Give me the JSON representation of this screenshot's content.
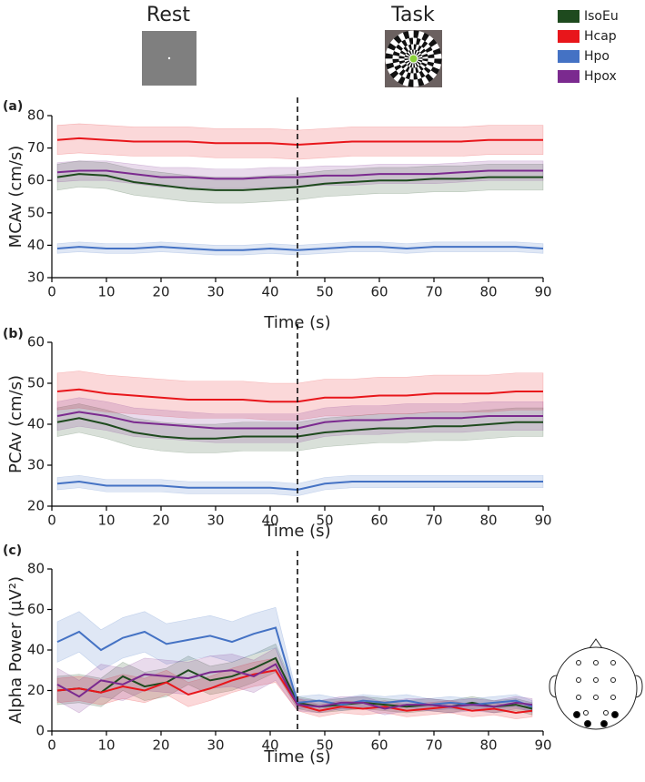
{
  "header": {
    "rest": "Rest",
    "task": "Task"
  },
  "chart_data": [
    {
      "type": "line",
      "panel_label": "(a)",
      "x_label": "Time (s)",
      "y_label": "MCAv (cm/s)",
      "vline": 45,
      "x": [
        1,
        5,
        10,
        15,
        20,
        25,
        30,
        35,
        40,
        45,
        50,
        55,
        60,
        65,
        70,
        75,
        80,
        85,
        90
      ],
      "xlim": [
        0,
        90
      ],
      "xticks": [
        0,
        10,
        20,
        30,
        40,
        50,
        60,
        70,
        80,
        90
      ],
      "ylim": [
        30,
        80
      ],
      "yticks": [
        30,
        40,
        50,
        60,
        70,
        80
      ],
      "series": [
        {
          "name": "IsoEu",
          "color": "#1e4a1e",
          "values": [
            61,
            62,
            61.5,
            59.5,
            58.5,
            57.5,
            57,
            57,
            57.5,
            58,
            59,
            59.5,
            60,
            60,
            60.5,
            60.5,
            61,
            61,
            61
          ],
          "errors": [
            4,
            4,
            4,
            4,
            4,
            4,
            4,
            4,
            4,
            4,
            4,
            4,
            4,
            4,
            4,
            4,
            4,
            4,
            4
          ]
        },
        {
          "name": "Hcap",
          "color": "#e8161b",
          "values": [
            72.5,
            73,
            72.5,
            72,
            72,
            72,
            71.5,
            71.5,
            71.5,
            71,
            71.5,
            72,
            72,
            72,
            72,
            72,
            72.5,
            72.5,
            72.5
          ],
          "errors": [
            4.5,
            4.5,
            4.5,
            4.5,
            4.5,
            4.5,
            4.5,
            4.5,
            4.5,
            4.5,
            4.5,
            4.5,
            4.5,
            4.5,
            4.5,
            4.5,
            4.5,
            4.5,
            4.5
          ]
        },
        {
          "name": "Hpo",
          "color": "#4472c4",
          "values": [
            39,
            39.5,
            39,
            39,
            39.5,
            39,
            38.5,
            38.5,
            39,
            38.5,
            39,
            39.5,
            39.5,
            39,
            39.5,
            39.5,
            39.5,
            39.5,
            39
          ],
          "errors": [
            1.5,
            1.5,
            1.5,
            1.5,
            1.5,
            1.5,
            1.5,
            1.5,
            1.5,
            1.5,
            1.5,
            1.5,
            1.5,
            1.5,
            1.5,
            1.5,
            1.5,
            1.5,
            1.5
          ]
        },
        {
          "name": "Hpox",
          "color": "#7b2a8f",
          "values": [
            62.5,
            63,
            63,
            62,
            61,
            61,
            60.5,
            60.5,
            61,
            61,
            61.5,
            61.5,
            62,
            62,
            62,
            62.5,
            63,
            63,
            63
          ],
          "errors": [
            3,
            3,
            3,
            3,
            3,
            3,
            3,
            3,
            3,
            3,
            3,
            3,
            3,
            3,
            3,
            3,
            3,
            3,
            3
          ]
        }
      ]
    },
    {
      "type": "line",
      "panel_label": "(b)",
      "x_label": "Time (s)",
      "y_label": "PCAv (cm/s)",
      "vline": 45,
      "x": [
        1,
        5,
        10,
        15,
        20,
        25,
        30,
        35,
        40,
        45,
        50,
        55,
        60,
        65,
        70,
        75,
        80,
        85,
        90
      ],
      "xlim": [
        0,
        90
      ],
      "xticks": [
        0,
        10,
        20,
        30,
        40,
        50,
        60,
        70,
        80,
        90
      ],
      "ylim": [
        20,
        60
      ],
      "yticks": [
        20,
        30,
        40,
        50,
        60
      ],
      "series": [
        {
          "name": "IsoEu",
          "color": "#1e4a1e",
          "values": [
            40.5,
            41.5,
            40,
            38,
            37,
            36.5,
            36.5,
            37,
            37,
            37,
            38,
            38.5,
            39,
            39,
            39.5,
            39.5,
            40,
            40.5,
            40.5
          ],
          "errors": [
            3.5,
            3.5,
            3.5,
            3.5,
            3.5,
            3.5,
            3.5,
            3.5,
            3.5,
            3.5,
            3.5,
            3.5,
            3.5,
            3.5,
            3.5,
            3.5,
            3.5,
            3.5,
            3.5
          ]
        },
        {
          "name": "Hcap",
          "color": "#e8161b",
          "values": [
            48,
            48.5,
            47.5,
            47,
            46.5,
            46,
            46,
            46,
            45.5,
            45.5,
            46.5,
            46.5,
            47,
            47,
            47.5,
            47.5,
            47.5,
            48,
            48
          ],
          "errors": [
            4.5,
            4.5,
            4.5,
            4.5,
            4.5,
            4.5,
            4.5,
            4.5,
            4.5,
            4.5,
            4.5,
            4.5,
            4.5,
            4.5,
            4.5,
            4.5,
            4.5,
            4.5,
            4.5
          ]
        },
        {
          "name": "Hpo",
          "color": "#4472c4",
          "values": [
            25.5,
            26,
            25,
            25,
            25,
            24.5,
            24.5,
            24.5,
            24.5,
            24,
            25.5,
            26,
            26,
            26,
            26,
            26,
            26,
            26,
            26
          ],
          "errors": [
            1.5,
            1.5,
            1.5,
            1.5,
            1.5,
            1.5,
            1.5,
            1.5,
            1.5,
            1.5,
            1.5,
            1.5,
            1.5,
            1.5,
            1.5,
            1.5,
            1.5,
            1.5,
            1.5
          ]
        },
        {
          "name": "Hpox",
          "color": "#7b2a8f",
          "values": [
            42,
            43,
            42,
            40.5,
            40,
            39.5,
            39,
            39,
            39,
            39,
            40.5,
            41,
            41,
            41.5,
            41.5,
            41.5,
            42,
            42,
            42
          ],
          "errors": [
            3.5,
            3.5,
            3.5,
            3.5,
            3.5,
            3.5,
            3.5,
            3.5,
            3.5,
            3.5,
            3.5,
            3.5,
            3.5,
            3.5,
            3.5,
            3.5,
            3.5,
            3.5,
            3.5
          ]
        }
      ]
    },
    {
      "type": "line",
      "panel_label": "(c)",
      "x_label": "Time (s)",
      "y_label": "Alpha Power (µV²)",
      "vline": 45,
      "x": [
        1,
        5,
        9,
        13,
        17,
        21,
        25,
        29,
        33,
        37,
        41,
        45,
        49,
        53,
        57,
        61,
        65,
        69,
        73,
        77,
        81,
        85,
        88
      ],
      "xlim": [
        0,
        90
      ],
      "xticks": [
        0,
        10,
        20,
        30,
        40,
        50,
        60,
        70,
        80,
        90
      ],
      "ylim": [
        0,
        80
      ],
      "yticks": [
        0,
        20,
        40,
        60,
        80
      ],
      "series": [
        {
          "name": "IsoEu",
          "color": "#1e4a1e",
          "values": [
            20,
            21,
            19,
            27,
            22,
            24,
            30,
            25,
            27,
            31,
            36,
            14,
            12,
            13,
            14,
            13,
            12,
            13,
            12,
            14,
            12,
            13,
            11
          ],
          "errors": [
            7,
            7,
            7,
            7,
            7,
            7,
            7,
            7,
            7,
            7,
            7,
            3,
            3,
            3,
            3,
            3,
            3,
            3,
            3,
            3,
            3,
            3,
            3
          ]
        },
        {
          "name": "Hcap",
          "color": "#e8161b",
          "values": [
            20,
            21,
            19,
            22,
            20,
            24,
            18,
            21,
            25,
            28,
            30,
            13,
            10,
            12,
            11,
            12,
            10,
            11,
            12,
            10,
            11,
            9,
            10
          ],
          "errors": [
            6,
            6,
            6,
            6,
            6,
            6,
            6,
            6,
            6,
            6,
            6,
            3,
            3,
            3,
            3,
            3,
            3,
            3,
            3,
            3,
            3,
            3,
            3
          ]
        },
        {
          "name": "Hpo",
          "color": "#4472c4",
          "values": [
            44,
            49,
            40,
            46,
            49,
            43,
            45,
            47,
            44,
            48,
            51,
            14,
            15,
            13,
            15,
            14,
            15,
            13,
            14,
            13,
            14,
            15,
            12
          ],
          "errors": [
            10,
            10,
            10,
            10,
            10,
            10,
            10,
            10,
            10,
            10,
            10,
            3,
            3,
            3,
            3,
            3,
            3,
            3,
            3,
            3,
            3,
            3,
            3
          ]
        },
        {
          "name": "Hpox",
          "color": "#7b2a8f",
          "values": [
            23,
            17,
            25,
            23,
            28,
            27,
            26,
            29,
            30,
            27,
            33,
            13,
            12,
            14,
            14,
            11,
            13,
            13,
            12,
            13,
            12,
            14,
            13
          ],
          "errors": [
            8,
            8,
            8,
            8,
            8,
            8,
            8,
            8,
            8,
            8,
            8,
            3,
            3,
            3,
            3,
            3,
            3,
            3,
            3,
            3,
            3,
            3,
            3
          ]
        }
      ]
    }
  ]
}
